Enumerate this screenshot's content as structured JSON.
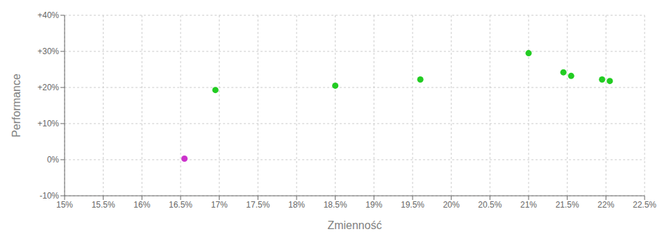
{
  "chart_data": {
    "type": "scatter",
    "x_label": "Zmienność",
    "y_label": "Performance",
    "xlim": [
      0.15,
      0.225
    ],
    "ylim": [
      -0.1,
      0.4
    ],
    "xticks": [
      {
        "value": 0.15,
        "label": "15%"
      },
      {
        "value": 0.155,
        "label": "15.5%"
      },
      {
        "value": 0.16,
        "label": "16%"
      },
      {
        "value": 0.165,
        "label": "16.5%"
      },
      {
        "value": 0.17,
        "label": "17%"
      },
      {
        "value": 0.175,
        "label": "17.5%"
      },
      {
        "value": 0.18,
        "label": "18%"
      },
      {
        "value": 0.185,
        "label": "18.5%"
      },
      {
        "value": 0.19,
        "label": "19%"
      },
      {
        "value": 0.195,
        "label": "19.5%"
      },
      {
        "value": 0.2,
        "label": "20%"
      },
      {
        "value": 0.205,
        "label": "20.5%"
      },
      {
        "value": 0.21,
        "label": "21%"
      },
      {
        "value": 0.215,
        "label": "21.5%"
      },
      {
        "value": 0.22,
        "label": "22%"
      },
      {
        "value": 0.225,
        "label": "22.5%"
      }
    ],
    "yticks": [
      {
        "value": -0.1,
        "label": "-10%"
      },
      {
        "value": 0.0,
        "label": "0%"
      },
      {
        "value": 0.1,
        "label": "+10%"
      },
      {
        "value": 0.2,
        "label": "+20%"
      },
      {
        "value": 0.3,
        "label": "+30%"
      },
      {
        "value": 0.4,
        "label": "+40%"
      }
    ],
    "grid": true,
    "series": [
      {
        "color": "#22cc22",
        "x": [
          0.1695,
          0.185,
          0.196,
          0.21,
          0.2145,
          0.2155,
          0.2195,
          0.2205
        ],
        "y": [
          0.193,
          0.205,
          0.222,
          0.295,
          0.242,
          0.232,
          0.222,
          0.218
        ]
      },
      {
        "color": "#cc33cc",
        "x": [
          0.1655
        ],
        "y": [
          0.003
        ]
      }
    ]
  }
}
